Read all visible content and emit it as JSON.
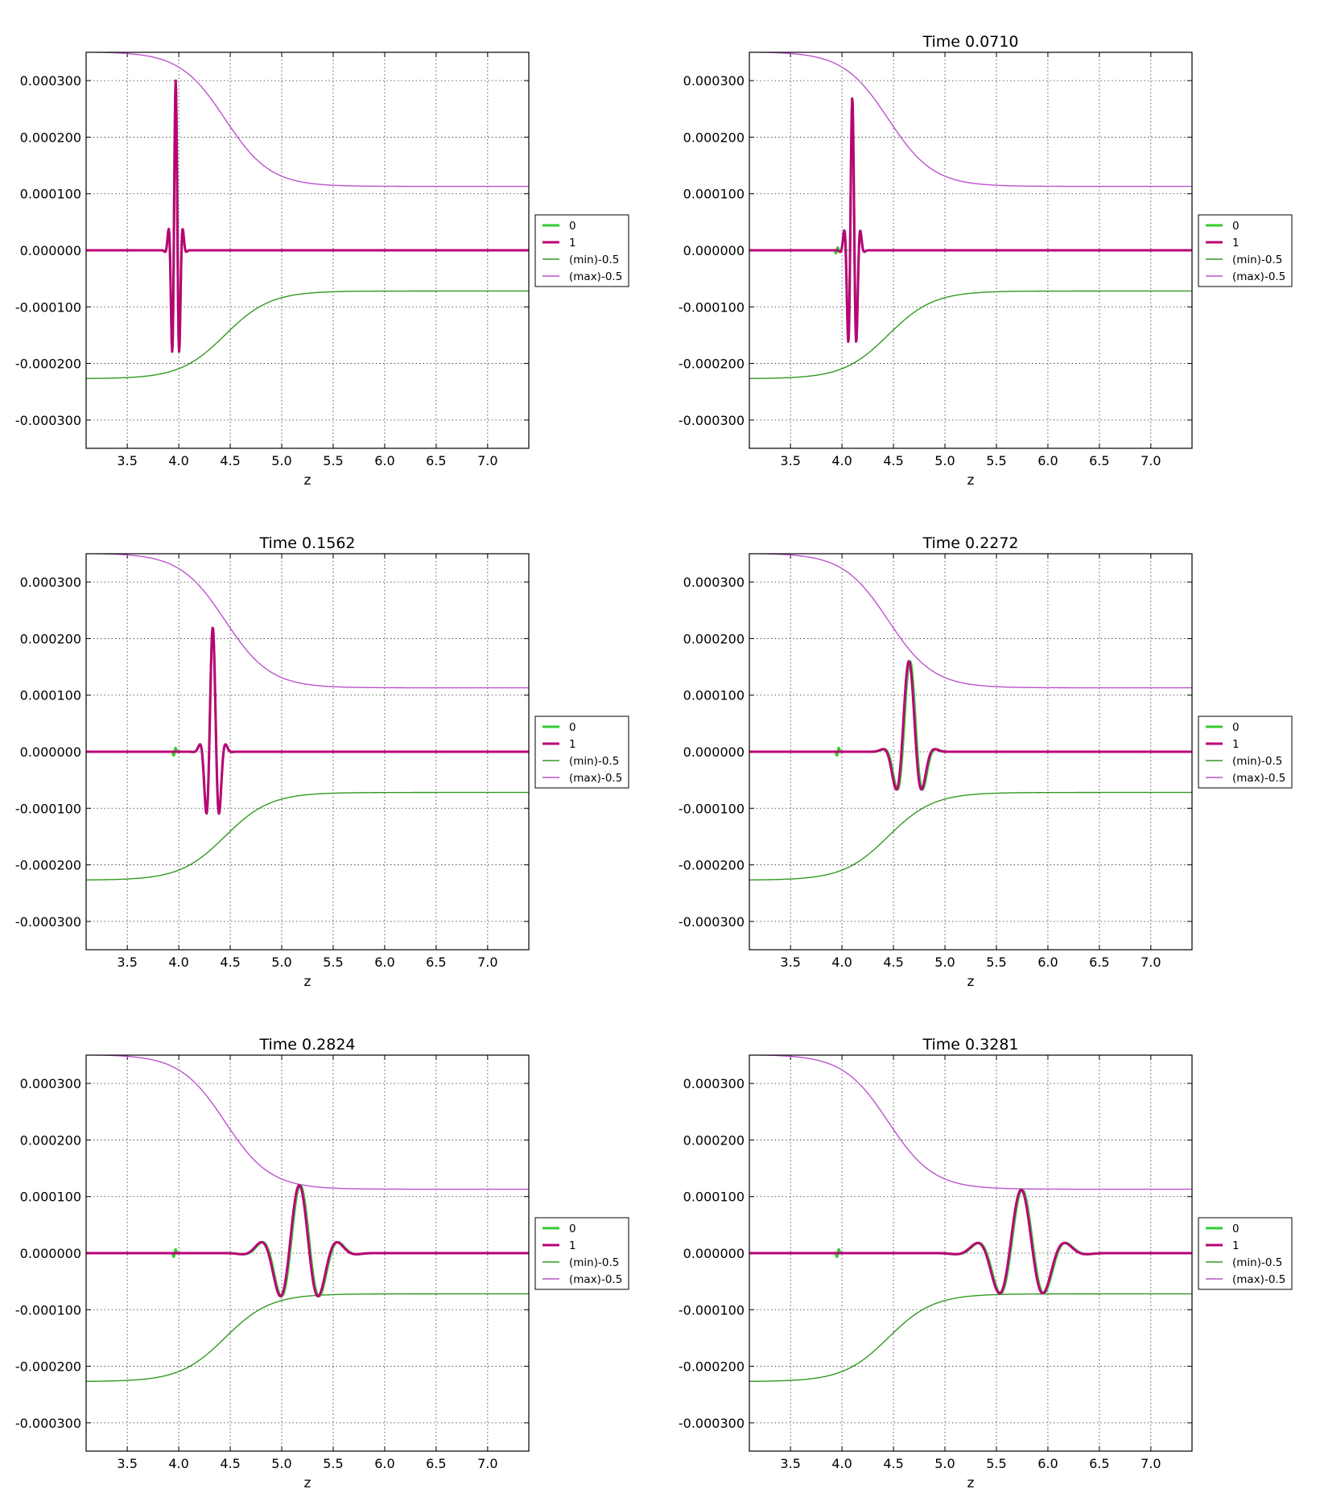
{
  "figure": {
    "panels": [
      {
        "title": ""
      },
      {
        "title": "Time 0.0710"
      },
      {
        "title": "Time 0.1562"
      },
      {
        "title": "Time 0.2272"
      },
      {
        "title": "Time 0.2824"
      },
      {
        "title": "Time 0.3281"
      }
    ]
  },
  "chart_data": [
    {
      "type": "line",
      "title": "",
      "xlabel": "z",
      "ylabel": "",
      "xlim": [
        3.1,
        7.4
      ],
      "ylim": [
        -0.00035,
        0.00035
      ],
      "xticks": [
        "3.5",
        "4.0",
        "4.5",
        "5.0",
        "5.5",
        "6.0",
        "6.5",
        "7.0"
      ],
      "yticks": [
        "0.000300",
        "0.000200",
        "0.000100",
        "0.000000",
        "-0.000100",
        "-0.000200",
        "-0.000300"
      ],
      "grid": true,
      "legend_position": "outside-right",
      "series": [
        {
          "name": "0",
          "color": "#33cc33",
          "width": 3,
          "wave": {
            "center": 3.97,
            "sigma": 0.035,
            "wavelength": 0.075,
            "amplitude": 0.0003
          },
          "blip": {
            "center": 3.95,
            "amplitude": 0.0
          }
        },
        {
          "name": "1",
          "color": "#bb0077",
          "width": 3,
          "wave": {
            "center": 3.97,
            "sigma": 0.035,
            "wavelength": 0.075,
            "amplitude": 0.0003
          },
          "blip": {
            "center": 3.95,
            "amplitude": 0.0
          }
        },
        {
          "name": "(min)-0.5",
          "color": "#339922",
          "width": 1.4,
          "envelope": {
            "left": -0.000227,
            "right": -7.2e-05,
            "mid": 4.45,
            "scale": 0.22
          }
        },
        {
          "name": "(max)-0.5",
          "color": "#bb55cc",
          "width": 1.4,
          "envelope": {
            "left": 0.000351,
            "right": 0.000113,
            "mid": 4.45,
            "scale": 0.22
          }
        }
      ]
    },
    {
      "type": "line",
      "title": "Time 0.0710",
      "xlabel": "z",
      "ylabel": "",
      "xlim": [
        3.1,
        7.4
      ],
      "ylim": [
        -0.00035,
        0.00035
      ],
      "xticks": [
        "3.5",
        "4.0",
        "4.5",
        "5.0",
        "5.5",
        "6.0",
        "6.5",
        "7.0"
      ],
      "yticks": [
        "0.000300",
        "0.000200",
        "0.000100",
        "0.000000",
        "-0.000100",
        "-0.000200",
        "-0.000300"
      ],
      "grid": true,
      "legend_position": "outside-right",
      "series": [
        {
          "name": "0",
          "color": "#33cc33",
          "width": 3,
          "wave": {
            "center": 4.1,
            "sigma": 0.04,
            "wavelength": 0.085,
            "amplitude": 0.00027
          },
          "blip": {
            "center": 3.95,
            "amplitude": 8e-06
          }
        },
        {
          "name": "1",
          "color": "#bb0077",
          "width": 3,
          "wave": {
            "center": 4.1,
            "sigma": 0.04,
            "wavelength": 0.085,
            "amplitude": 0.00027
          },
          "blip": {
            "center": 3.95,
            "amplitude": 0.0
          }
        },
        {
          "name": "(min)-0.5",
          "color": "#339922",
          "width": 1.4,
          "envelope": {
            "left": -0.000227,
            "right": -7.2e-05,
            "mid": 4.45,
            "scale": 0.22
          }
        },
        {
          "name": "(max)-0.5",
          "color": "#bb55cc",
          "width": 1.4,
          "envelope": {
            "left": 0.000351,
            "right": 0.000113,
            "mid": 4.45,
            "scale": 0.22
          }
        }
      ]
    },
    {
      "type": "line",
      "title": "Time 0.1562",
      "xlabel": "z",
      "ylabel": "",
      "xlim": [
        3.1,
        7.4
      ],
      "ylim": [
        -0.00035,
        0.00035
      ],
      "xticks": [
        "3.5",
        "4.0",
        "4.5",
        "5.0",
        "5.5",
        "6.0",
        "6.5",
        "7.0"
      ],
      "yticks": [
        "0.000300",
        "0.000200",
        "0.000100",
        "0.000000",
        "-0.000100",
        "-0.000200",
        "-0.000300"
      ],
      "grid": true,
      "legend_position": "outside-right",
      "series": [
        {
          "name": "0",
          "color": "#33cc33",
          "width": 3,
          "wave": {
            "center": 4.33,
            "sigma": 0.055,
            "wavelength": 0.14,
            "amplitude": 0.00022
          },
          "blip": {
            "center": 3.96,
            "amplitude": 1e-05
          }
        },
        {
          "name": "1",
          "color": "#bb0077",
          "width": 3,
          "wave": {
            "center": 4.33,
            "sigma": 0.055,
            "wavelength": 0.14,
            "amplitude": 0.00022
          },
          "blip": {
            "center": 3.96,
            "amplitude": 0.0
          }
        },
        {
          "name": "(min)-0.5",
          "color": "#339922",
          "width": 1.4,
          "envelope": {
            "left": -0.000227,
            "right": -7.2e-05,
            "mid": 4.45,
            "scale": 0.22
          }
        },
        {
          "name": "(max)-0.5",
          "color": "#bb55cc",
          "width": 1.4,
          "envelope": {
            "left": 0.000351,
            "right": 0.000113,
            "mid": 4.45,
            "scale": 0.22
          }
        }
      ]
    },
    {
      "type": "line",
      "title": "Time 0.2272",
      "xlabel": "z",
      "ylabel": "",
      "xlim": [
        3.1,
        7.4
      ],
      "ylim": [
        -0.00035,
        0.00035
      ],
      "xticks": [
        "3.5",
        "4.0",
        "4.5",
        "5.0",
        "5.5",
        "6.0",
        "6.5",
        "7.0"
      ],
      "yticks": [
        "0.000300",
        "0.000200",
        "0.000100",
        "0.000000",
        "-0.000100",
        "-0.000200",
        "-0.000300"
      ],
      "grid": true,
      "legend_position": "outside-right",
      "series": [
        {
          "name": "0",
          "color": "#33cc33",
          "width": 3,
          "wave": {
            "center": 4.66,
            "sigma": 0.1,
            "wavelength": 0.29,
            "amplitude": 0.00016
          },
          "blip": {
            "center": 3.96,
            "amplitude": 1e-05
          }
        },
        {
          "name": "1",
          "color": "#bb0077",
          "width": 3,
          "wave": {
            "center": 4.65,
            "sigma": 0.1,
            "wavelength": 0.29,
            "amplitude": 0.00016
          },
          "blip": {
            "center": 3.96,
            "amplitude": 0.0
          }
        },
        {
          "name": "(min)-0.5",
          "color": "#339922",
          "width": 1.4,
          "envelope": {
            "left": -0.000227,
            "right": -7.2e-05,
            "mid": 4.45,
            "scale": 0.22
          }
        },
        {
          "name": "(max)-0.5",
          "color": "#bb55cc",
          "width": 1.4,
          "envelope": {
            "left": 0.000351,
            "right": 0.000113,
            "mid": 4.45,
            "scale": 0.22
          }
        }
      ]
    },
    {
      "type": "line",
      "title": "Time 0.2824",
      "xlabel": "z",
      "ylabel": "",
      "xlim": [
        3.1,
        7.4
      ],
      "ylim": [
        -0.00035,
        0.00035
      ],
      "xticks": [
        "3.5",
        "4.0",
        "4.5",
        "5.0",
        "5.5",
        "6.0",
        "6.5",
        "7.0"
      ],
      "yticks": [
        "0.000300",
        "0.000200",
        "0.000100",
        "0.000000",
        "-0.000100",
        "-0.000200",
        "-0.000300"
      ],
      "grid": true,
      "legend_position": "outside-right",
      "series": [
        {
          "name": "0",
          "color": "#33cc33",
          "width": 3,
          "wave": {
            "center": 5.18,
            "sigma": 0.2,
            "wavelength": 0.4,
            "amplitude": 0.00012
          },
          "blip": {
            "center": 3.96,
            "amplitude": 1e-05
          }
        },
        {
          "name": "1",
          "color": "#bb0077",
          "width": 3,
          "wave": {
            "center": 5.17,
            "sigma": 0.2,
            "wavelength": 0.4,
            "amplitude": 0.00012
          },
          "blip": {
            "center": 3.96,
            "amplitude": 0.0
          }
        },
        {
          "name": "(min)-0.5",
          "color": "#339922",
          "width": 1.4,
          "envelope": {
            "left": -0.000227,
            "right": -7.2e-05,
            "mid": 4.45,
            "scale": 0.22
          }
        },
        {
          "name": "(max)-0.5",
          "color": "#bb55cc",
          "width": 1.4,
          "envelope": {
            "left": 0.000351,
            "right": 0.000113,
            "mid": 4.45,
            "scale": 0.22
          }
        }
      ]
    },
    {
      "type": "line",
      "title": "Time 0.3281",
      "xlabel": "z",
      "ylabel": "",
      "xlim": [
        3.1,
        7.4
      ],
      "ylim": [
        -0.00035,
        0.00035
      ],
      "xticks": [
        "3.5",
        "4.0",
        "4.5",
        "5.0",
        "5.5",
        "6.0",
        "6.5",
        "7.0"
      ],
      "yticks": [
        "0.000300",
        "0.000200",
        "0.000100",
        "0.000000",
        "-0.000100",
        "-0.000200",
        "-0.000300"
      ],
      "grid": true,
      "legend_position": "outside-right",
      "series": [
        {
          "name": "0",
          "color": "#33cc33",
          "width": 3,
          "wave": {
            "center": 5.75,
            "sigma": 0.23,
            "wavelength": 0.46,
            "amplitude": 0.000112
          },
          "blip": {
            "center": 3.96,
            "amplitude": 1e-05
          }
        },
        {
          "name": "1",
          "color": "#bb0077",
          "width": 3,
          "wave": {
            "center": 5.74,
            "sigma": 0.23,
            "wavelength": 0.46,
            "amplitude": 0.000112
          },
          "blip": {
            "center": 3.96,
            "amplitude": 0.0
          }
        },
        {
          "name": "(min)-0.5",
          "color": "#339922",
          "width": 1.4,
          "envelope": {
            "left": -0.000227,
            "right": -7.2e-05,
            "mid": 4.45,
            "scale": 0.22
          }
        },
        {
          "name": "(max)-0.5",
          "color": "#bb55cc",
          "width": 1.4,
          "envelope": {
            "left": 0.000351,
            "right": 0.000113,
            "mid": 4.45,
            "scale": 0.22
          }
        }
      ]
    }
  ]
}
